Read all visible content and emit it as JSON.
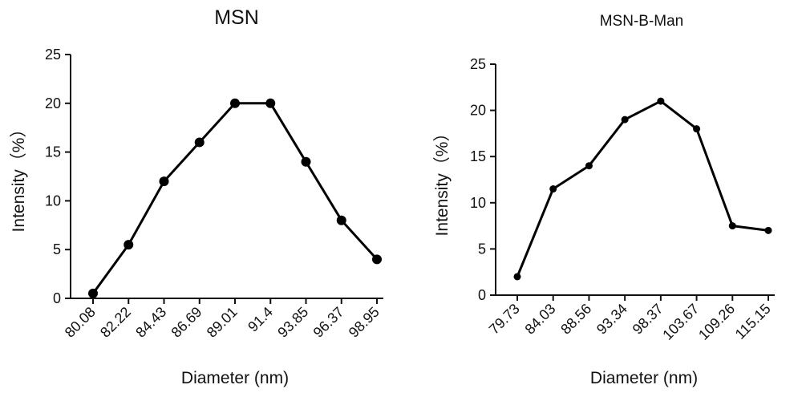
{
  "chart_data": [
    {
      "type": "line",
      "title": "MSN",
      "xlabel": "Diameter (nm)",
      "ylabel": "Intensity（%）",
      "categories": [
        "80.08",
        "82.22",
        "84.43",
        "86.69",
        "89.01",
        "91.4",
        "93.85",
        "96.37",
        "98.95"
      ],
      "values": [
        0.5,
        5.5,
        12,
        16,
        20,
        20,
        14,
        8,
        4
      ],
      "ylim": [
        0,
        25
      ],
      "yticks": [
        0,
        5,
        10,
        15,
        20,
        25
      ],
      "grid": false,
      "marker": "circle",
      "color": "#000000"
    },
    {
      "type": "line",
      "title": "MSN-B-Man",
      "xlabel": "Diameter (nm)",
      "ylabel": "Intensity（%）",
      "categories": [
        "79.73",
        "84.03",
        "88.56",
        "93.34",
        "98.37",
        "103.67",
        "109.26",
        "115.15"
      ],
      "values": [
        2,
        11.5,
        14,
        19,
        21,
        18,
        7.5,
        7
      ],
      "ylim": [
        0,
        25
      ],
      "yticks": [
        0,
        5,
        10,
        15,
        20,
        25
      ],
      "grid": false,
      "marker": "circle",
      "color": "#000000"
    }
  ]
}
